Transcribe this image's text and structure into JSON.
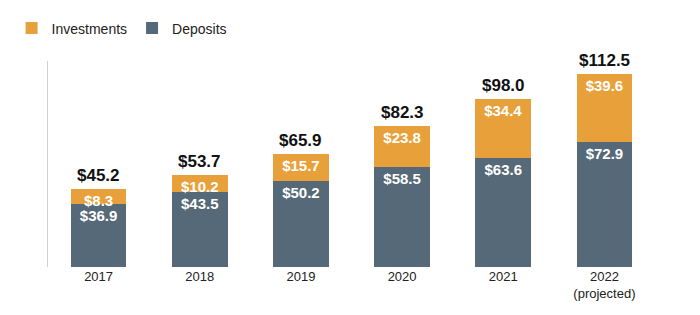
{
  "chart_data": {
    "type": "bar",
    "stacked": true,
    "data_labels": true,
    "tick_labels": "x",
    "grid": false,
    "legend": "top-left",
    "categories": [
      "2017",
      "2018",
      "2019",
      "2020",
      "2021",
      "2022\n(projected)"
    ],
    "series": [
      {
        "name": "Deposits",
        "color": "#566978",
        "values": [
          36.9,
          43.5,
          50.2,
          58.5,
          63.6,
          72.9
        ],
        "value_labels": [
          "$36.9",
          "$43.5",
          "$50.2",
          "$58.5",
          "$63.6",
          "$72.9"
        ]
      },
      {
        "name": "Investments",
        "color": "#E8A13A",
        "values": [
          8.3,
          10.2,
          15.7,
          23.8,
          34.4,
          39.6
        ],
        "value_labels": [
          "$8.3",
          "$10.2",
          "$15.7",
          "$23.8",
          "$34.4",
          "$39.6"
        ]
      }
    ],
    "totals": [
      45.2,
      53.7,
      65.9,
      82.3,
      98.0,
      112.5
    ],
    "total_labels": [
      "$45.2",
      "$53.7",
      "$65.9",
      "$82.3",
      "$98.0",
      "$112.5"
    ],
    "ylim": [
      0,
      120
    ],
    "yticks": []
  }
}
